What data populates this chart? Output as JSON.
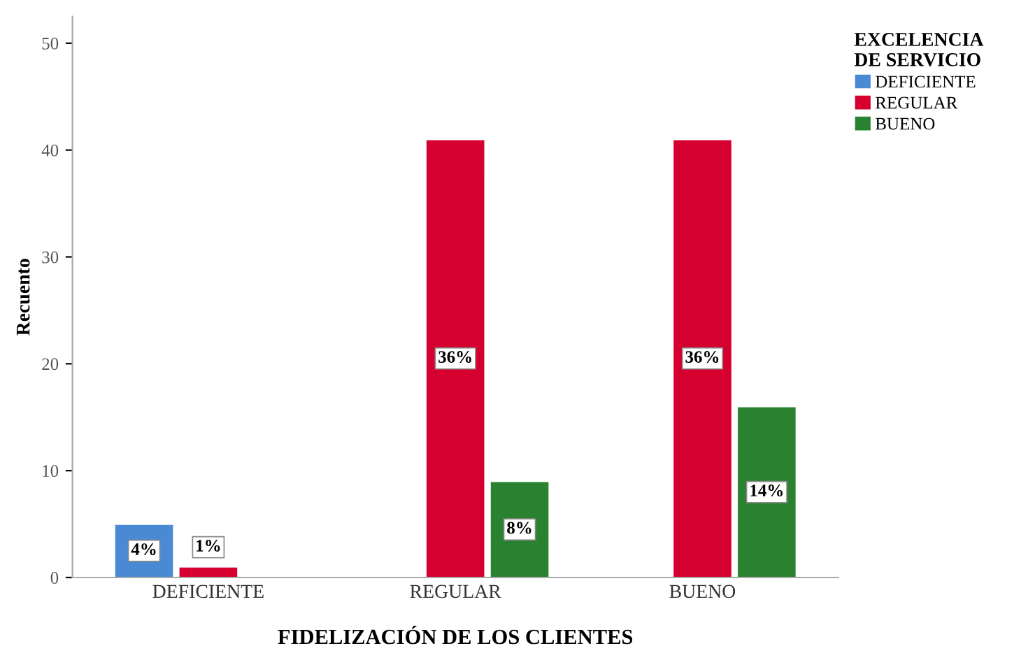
{
  "chart_data": {
    "type": "bar",
    "xlabel": "FIDELIZACIÓN DE LOS CLIENTES",
    "ylabel": "Recuento",
    "legend_title": "EXCELENCIA\nDE SERVICIO",
    "categories": [
      "DEFICIENTE",
      "REGULAR",
      "BUENO"
    ],
    "series": [
      {
        "name": "DEFICIENTE",
        "color": "#4a8ad4",
        "values": [
          5,
          null,
          null
        ]
      },
      {
        "name": "REGULAR",
        "color": "#d5002f",
        "values": [
          1,
          41,
          41
        ]
      },
      {
        "name": "BUENO",
        "color": "#2a8231",
        "values": [
          null,
          9,
          16
        ]
      }
    ],
    "annotations": [
      "4%",
      "1%",
      "36%",
      "8%",
      "36%",
      "14%"
    ],
    "ylim": [
      0,
      52.5
    ],
    "yticks": [
      0,
      10,
      20,
      30,
      40,
      50
    ],
    "grid": false,
    "legend": "top right"
  }
}
